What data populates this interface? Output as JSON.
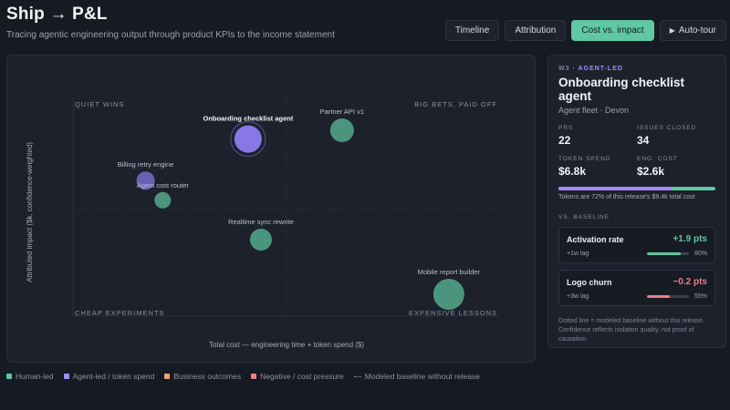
{
  "header": {
    "title": "Ship → P&L",
    "subtitle": "Tracing agentic engineering output through product KPIs to the income statement"
  },
  "tabs": [
    {
      "label": "Timeline",
      "active": false
    },
    {
      "label": "Attribution",
      "active": false
    },
    {
      "label": "Cost vs. impact",
      "active": true
    },
    {
      "label": "Auto-tour",
      "active": false,
      "icon": "play-icon"
    }
  ],
  "chart": {
    "quadrants": {
      "top_left": "QUIET WINS",
      "top_right": "BIG BETS, PAID OFF",
      "bottom_left": "CHEAP EXPERIMENTS",
      "bottom_right": "EXPENSIVE LESSONS"
    },
    "xlabel": "Total cost — engineering time + token spend ($)",
    "ylabel": "Attributed impact ($k, confidence-weighted)"
  },
  "chart_data": {
    "type": "scatter",
    "xlabel": "Total cost — engineering time + token spend ($)",
    "ylabel": "Attributed impact ($k, confidence-weighted)",
    "x_range": [
      0,
      1
    ],
    "y_range": [
      0,
      1
    ],
    "grid": false,
    "points": [
      {
        "name": "Onboarding checklist agent",
        "x": 0.41,
        "y": 0.81,
        "size": 15,
        "kind": "agent",
        "selected": true
      },
      {
        "name": "Partner API v1",
        "x": 0.63,
        "y": 0.85,
        "size": 13,
        "kind": "human"
      },
      {
        "name": "Billing retry engine",
        "x": 0.17,
        "y": 0.62,
        "size": 10,
        "kind": "agent"
      },
      {
        "name": "Agent cost router",
        "x": 0.21,
        "y": 0.53,
        "size": 9,
        "kind": "human"
      },
      {
        "name": "Realtime sync rewrite",
        "x": 0.44,
        "y": 0.35,
        "size": 12,
        "kind": "human"
      },
      {
        "name": "Mobile report builder",
        "x": 0.88,
        "y": 0.1,
        "size": 17,
        "kind": "human"
      }
    ],
    "colors": {
      "human": "#5fc7a3",
      "agent": "#8f7cf0"
    }
  },
  "legend": [
    {
      "label": "Human-led",
      "color": "#5fc7a3"
    },
    {
      "label": "Agent-led / token spend",
      "color": "#a78bfa"
    },
    {
      "label": "Business outcomes",
      "color": "#f0a868"
    },
    {
      "label": "Negative / cost pressure",
      "color": "#f07d86"
    },
    {
      "label": "Modeled baseline without release",
      "dotted": true
    }
  ],
  "detail": {
    "week": "W3",
    "tag": "AGENT-LED",
    "title": "Onboarding checklist agent",
    "subtitle": "Agent fleet · Devon",
    "stats": [
      {
        "label": "PRS",
        "value": "22"
      },
      {
        "label": "ISSUES CLOSED",
        "value": "34"
      },
      {
        "label": "TOKEN SPEND",
        "value": "$6.8k"
      },
      {
        "label": "ENG. COST",
        "value": "$2.6k"
      }
    ],
    "token_share": 0.72,
    "spend_note": "Tokens are 72% of this release's $9.4k total cost",
    "baseline_heading": "VS. BASELINE",
    "kpis": [
      {
        "name": "Activation rate",
        "delta": "+1.9 pts",
        "lag": "+1w lag",
        "confidence": 0.8,
        "pct": "80%",
        "color": "#5fc7a3"
      },
      {
        "name": "Logo churn",
        "delta": "−0.2 pts",
        "lag": "+3w lag",
        "confidence": 0.55,
        "pct": "55%",
        "color": "#f07d86"
      }
    ],
    "footnote": "Dotted line = modeled baseline without this release. Confidence reflects isolation quality, not proof of causation."
  }
}
